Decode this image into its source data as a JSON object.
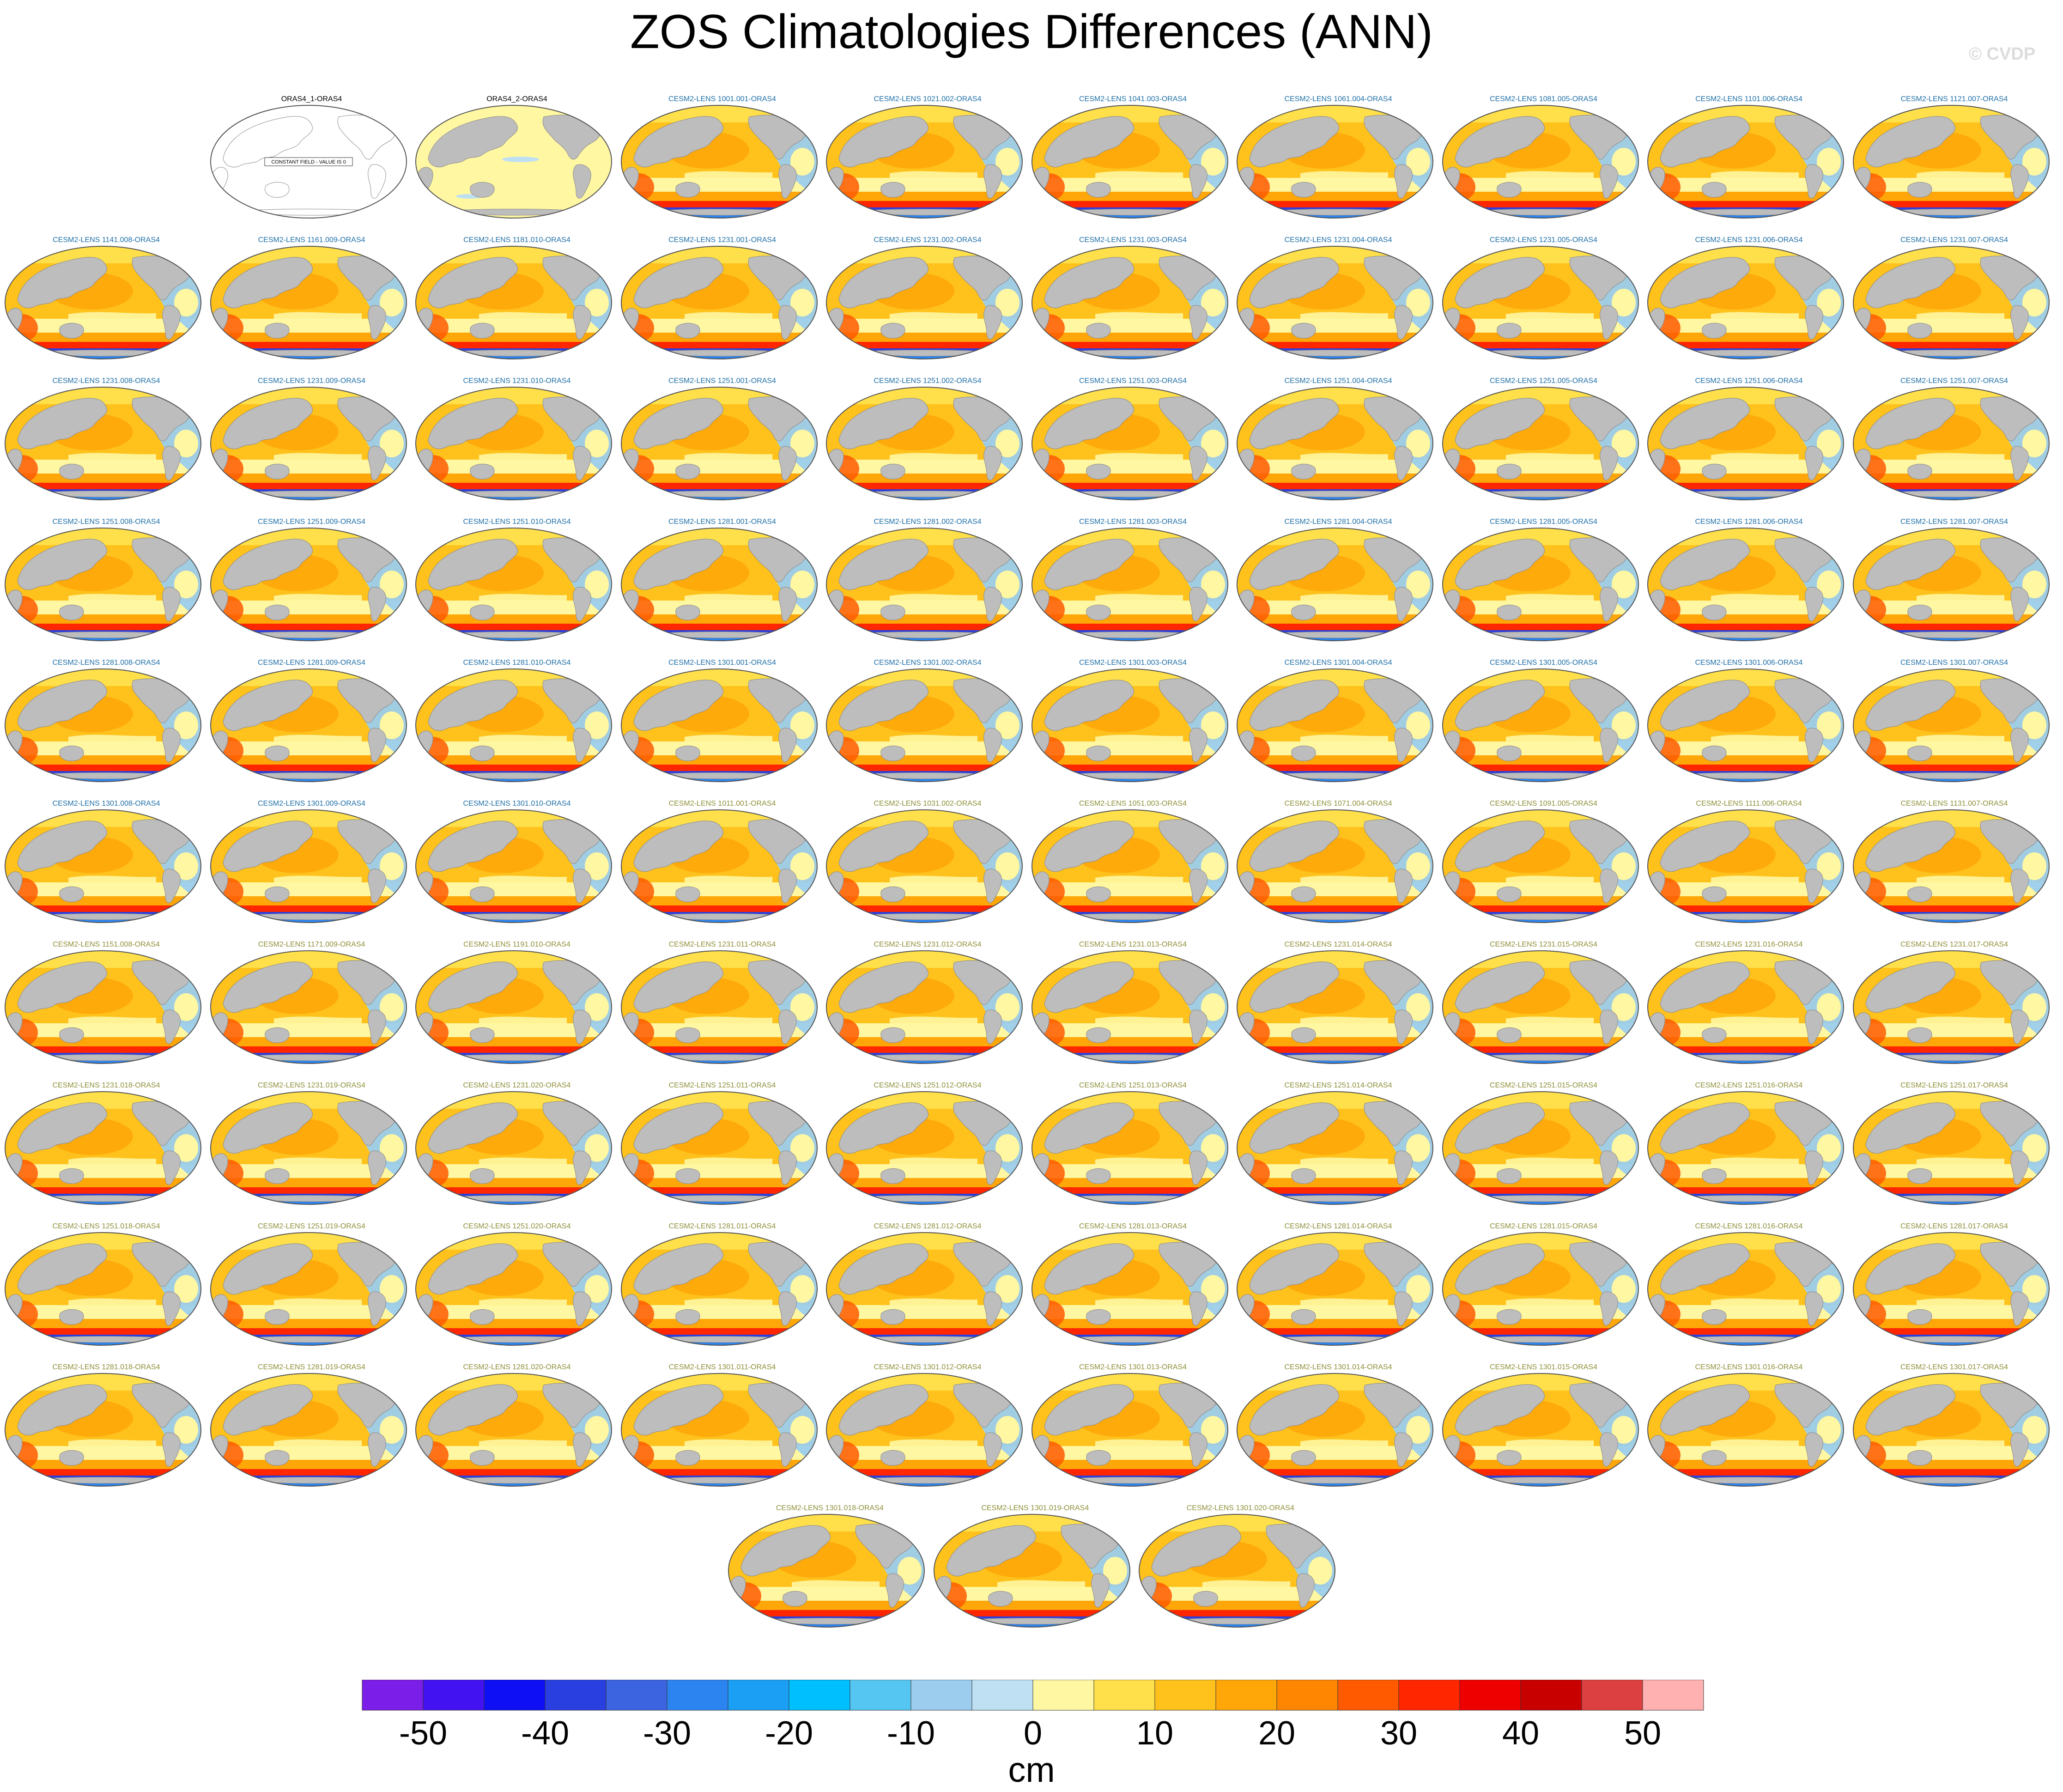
{
  "title": "ZOS Climatologies Differences (ANN)",
  "watermark": "© CVDP",
  "colors": {
    "title_blue": "#1e6fa8",
    "title_green": "#8f8f3a",
    "land": "#bdbdbd",
    "colorbar": [
      "#7b1ee8",
      "#4312f0",
      "#0f0ff5",
      "#2a3fe0",
      "#3c64e0",
      "#2b84f0",
      "#1b9ff5",
      "#00bfff",
      "#55c6f2",
      "#9ccdee",
      "#bfe0f3",
      "#fff7a2",
      "#ffe04a",
      "#ffc21c",
      "#ffa608",
      "#ff8600",
      "#ff5a00",
      "#ff2600",
      "#ee0000",
      "#c80000",
      "#dc4040",
      "#ffb0b0"
    ]
  },
  "panels": [
    {
      "label": "ORAS4_1-ORAS4",
      "style": "constant",
      "note": "CONSTANT FIELD - VALUE IS 0"
    },
    {
      "label": "ORAS4_2-ORAS4",
      "style": "yellow"
    },
    {
      "label": "CESM2-LENS 1001.001-ORAS4",
      "style": "diff"
    },
    {
      "label": "CESM2-LENS 1021.002-ORAS4",
      "style": "diff"
    },
    {
      "label": "CESM2-LENS 1041.003-ORAS4",
      "style": "diff"
    },
    {
      "label": "CESM2-LENS 1061.004-ORAS4",
      "style": "diff"
    },
    {
      "label": "CESM2-LENS 1081.005-ORAS4",
      "style": "diff"
    },
    {
      "label": "CESM2-LENS 1101.006-ORAS4",
      "style": "diff"
    },
    {
      "label": "CESM2-LENS 1121.007-ORAS4",
      "style": "diff"
    },
    {
      "label": "CESM2-LENS 1141.008-ORAS4",
      "style": "diff"
    },
    {
      "label": "CESM2-LENS 1161.009-ORAS4",
      "style": "diff"
    },
    {
      "label": "CESM2-LENS 1181.010-ORAS4",
      "style": "diff"
    },
    {
      "label": "CESM2-LENS 1231.001-ORAS4",
      "style": "diff"
    },
    {
      "label": "CESM2-LENS 1231.002-ORAS4",
      "style": "diff"
    },
    {
      "label": "CESM2-LENS 1231.003-ORAS4",
      "style": "diff"
    },
    {
      "label": "CESM2-LENS 1231.004-ORAS4",
      "style": "diff"
    },
    {
      "label": "CESM2-LENS 1231.005-ORAS4",
      "style": "diff"
    },
    {
      "label": "CESM2-LENS 1231.006-ORAS4",
      "style": "diff"
    },
    {
      "label": "CESM2-LENS 1231.007-ORAS4",
      "style": "diff"
    },
    {
      "label": "CESM2-LENS 1231.008-ORAS4",
      "style": "diff"
    },
    {
      "label": "CESM2-LENS 1231.009-ORAS4",
      "style": "diff"
    },
    {
      "label": "CESM2-LENS 1231.010-ORAS4",
      "style": "diff"
    },
    {
      "label": "CESM2-LENS 1251.001-ORAS4",
      "style": "diff"
    },
    {
      "label": "CESM2-LENS 1251.002-ORAS4",
      "style": "diff"
    },
    {
      "label": "CESM2-LENS 1251.003-ORAS4",
      "style": "diff"
    },
    {
      "label": "CESM2-LENS 1251.004-ORAS4",
      "style": "diff"
    },
    {
      "label": "CESM2-LENS 1251.005-ORAS4",
      "style": "diff"
    },
    {
      "label": "CESM2-LENS 1251.006-ORAS4",
      "style": "diff"
    },
    {
      "label": "CESM2-LENS 1251.007-ORAS4",
      "style": "diff"
    },
    {
      "label": "CESM2-LENS 1251.008-ORAS4",
      "style": "diff"
    },
    {
      "label": "CESM2-LENS 1251.009-ORAS4",
      "style": "diff"
    },
    {
      "label": "CESM2-LENS 1251.010-ORAS4",
      "style": "diff"
    },
    {
      "label": "CESM2-LENS 1281.001-ORAS4",
      "style": "diff"
    },
    {
      "label": "CESM2-LENS 1281.002-ORAS4",
      "style": "diff"
    },
    {
      "label": "CESM2-LENS 1281.003-ORAS4",
      "style": "diff"
    },
    {
      "label": "CESM2-LENS 1281.004-ORAS4",
      "style": "diff"
    },
    {
      "label": "CESM2-LENS 1281.005-ORAS4",
      "style": "diff"
    },
    {
      "label": "CESM2-LENS 1281.006-ORAS4",
      "style": "diff"
    },
    {
      "label": "CESM2-LENS 1281.007-ORAS4",
      "style": "diff"
    },
    {
      "label": "CESM2-LENS 1281.008-ORAS4",
      "style": "diff"
    },
    {
      "label": "CESM2-LENS 1281.009-ORAS4",
      "style": "diff"
    },
    {
      "label": "CESM2-LENS 1281.010-ORAS4",
      "style": "diff"
    },
    {
      "label": "CESM2-LENS 1301.001-ORAS4",
      "style": "diff"
    },
    {
      "label": "CESM2-LENS 1301.002-ORAS4",
      "style": "diff"
    },
    {
      "label": "CESM2-LENS 1301.003-ORAS4",
      "style": "diff"
    },
    {
      "label": "CESM2-LENS 1301.004-ORAS4",
      "style": "diff"
    },
    {
      "label": "CESM2-LENS 1301.005-ORAS4",
      "style": "diff"
    },
    {
      "label": "CESM2-LENS 1301.006-ORAS4",
      "style": "diff"
    },
    {
      "label": "CESM2-LENS 1301.007-ORAS4",
      "style": "diff"
    },
    {
      "label": "CESM2-LENS 1301.008-ORAS4",
      "style": "diff"
    },
    {
      "label": "CESM2-LENS 1301.009-ORAS4",
      "style": "diff"
    },
    {
      "label": "CESM2-LENS 1301.010-ORAS4",
      "style": "diff"
    },
    {
      "label": "CESM2-LENS 1011.001-ORAS4",
      "style": "diff",
      "tint": "green"
    },
    {
      "label": "CESM2-LENS 1031.002-ORAS4",
      "style": "diff",
      "tint": "green"
    },
    {
      "label": "CESM2-LENS 1051.003-ORAS4",
      "style": "diff",
      "tint": "green"
    },
    {
      "label": "CESM2-LENS 1071.004-ORAS4",
      "style": "diff",
      "tint": "green"
    },
    {
      "label": "CESM2-LENS 1091.005-ORAS4",
      "style": "diff",
      "tint": "green"
    },
    {
      "label": "CESM2-LENS 1111.006-ORAS4",
      "style": "diff",
      "tint": "green"
    },
    {
      "label": "CESM2-LENS 1131.007-ORAS4",
      "style": "diff",
      "tint": "green"
    },
    {
      "label": "CESM2-LENS 1151.008-ORAS4",
      "style": "diff",
      "tint": "green"
    },
    {
      "label": "CESM2-LENS 1171.009-ORAS4",
      "style": "diff",
      "tint": "green"
    },
    {
      "label": "CESM2-LENS 1191.010-ORAS4",
      "style": "diff",
      "tint": "green"
    },
    {
      "label": "CESM2-LENS 1231.011-ORAS4",
      "style": "diff",
      "tint": "green"
    },
    {
      "label": "CESM2-LENS 1231.012-ORAS4",
      "style": "diff",
      "tint": "green"
    },
    {
      "label": "CESM2-LENS 1231.013-ORAS4",
      "style": "diff",
      "tint": "green"
    },
    {
      "label": "CESM2-LENS 1231.014-ORAS4",
      "style": "diff",
      "tint": "green"
    },
    {
      "label": "CESM2-LENS 1231.015-ORAS4",
      "style": "diff",
      "tint": "green"
    },
    {
      "label": "CESM2-LENS 1231.016-ORAS4",
      "style": "diff",
      "tint": "green"
    },
    {
      "label": "CESM2-LENS 1231.017-ORAS4",
      "style": "diff",
      "tint": "green"
    },
    {
      "label": "CESM2-LENS 1231.018-ORAS4",
      "style": "diff",
      "tint": "green"
    },
    {
      "label": "CESM2-LENS 1231.019-ORAS4",
      "style": "diff",
      "tint": "green"
    },
    {
      "label": "CESM2-LENS 1231.020-ORAS4",
      "style": "diff",
      "tint": "green"
    },
    {
      "label": "CESM2-LENS 1251.011-ORAS4",
      "style": "diff",
      "tint": "green"
    },
    {
      "label": "CESM2-LENS 1251.012-ORAS4",
      "style": "diff",
      "tint": "green"
    },
    {
      "label": "CESM2-LENS 1251.013-ORAS4",
      "style": "diff",
      "tint": "green"
    },
    {
      "label": "CESM2-LENS 1251.014-ORAS4",
      "style": "diff",
      "tint": "green"
    },
    {
      "label": "CESM2-LENS 1251.015-ORAS4",
      "style": "diff",
      "tint": "green"
    },
    {
      "label": "CESM2-LENS 1251.016-ORAS4",
      "style": "diff",
      "tint": "green"
    },
    {
      "label": "CESM2-LENS 1251.017-ORAS4",
      "style": "diff",
      "tint": "green"
    },
    {
      "label": "CESM2-LENS 1251.018-ORAS4",
      "style": "diff",
      "tint": "green"
    },
    {
      "label": "CESM2-LENS 1251.019-ORAS4",
      "style": "diff",
      "tint": "green"
    },
    {
      "label": "CESM2-LENS 1251.020-ORAS4",
      "style": "diff",
      "tint": "green"
    },
    {
      "label": "CESM2-LENS 1281.011-ORAS4",
      "style": "diff",
      "tint": "green"
    },
    {
      "label": "CESM2-LENS 1281.012-ORAS4",
      "style": "diff",
      "tint": "green"
    },
    {
      "label": "CESM2-LENS 1281.013-ORAS4",
      "style": "diff",
      "tint": "green"
    },
    {
      "label": "CESM2-LENS 1281.014-ORAS4",
      "style": "diff",
      "tint": "green"
    },
    {
      "label": "CESM2-LENS 1281.015-ORAS4",
      "style": "diff",
      "tint": "green"
    },
    {
      "label": "CESM2-LENS 1281.016-ORAS4",
      "style": "diff",
      "tint": "green"
    },
    {
      "label": "CESM2-LENS 1281.017-ORAS4",
      "style": "diff",
      "tint": "green"
    },
    {
      "label": "CESM2-LENS 1281.018-ORAS4",
      "style": "diff",
      "tint": "green"
    },
    {
      "label": "CESM2-LENS 1281.019-ORAS4",
      "style": "diff",
      "tint": "green"
    },
    {
      "label": "CESM2-LENS 1281.020-ORAS4",
      "style": "diff",
      "tint": "green"
    },
    {
      "label": "CESM2-LENS 1301.011-ORAS4",
      "style": "diff",
      "tint": "green"
    },
    {
      "label": "CESM2-LENS 1301.012-ORAS4",
      "style": "diff",
      "tint": "green"
    },
    {
      "label": "CESM2-LENS 1301.013-ORAS4",
      "style": "diff",
      "tint": "green"
    },
    {
      "label": "CESM2-LENS 1301.014-ORAS4",
      "style": "diff",
      "tint": "green"
    },
    {
      "label": "CESM2-LENS 1301.015-ORAS4",
      "style": "diff",
      "tint": "green"
    },
    {
      "label": "CESM2-LENS 1301.016-ORAS4",
      "style": "diff",
      "tint": "green"
    },
    {
      "label": "CESM2-LENS 1301.017-ORAS4",
      "style": "diff",
      "tint": "green"
    },
    {
      "label": "CESM2-LENS 1301.018-ORAS4",
      "style": "diff",
      "tint": "green"
    },
    {
      "label": "CESM2-LENS 1301.019-ORAS4",
      "style": "diff",
      "tint": "green"
    },
    {
      "label": "CESM2-LENS 1301.020-ORAS4",
      "style": "diff",
      "tint": "green"
    }
  ],
  "colorbar": {
    "tick_labels": [
      "-50",
      "-40",
      "-30",
      "-20",
      "-10",
      "0",
      "10",
      "20",
      "30",
      "40",
      "50"
    ],
    "units": "cm"
  }
}
